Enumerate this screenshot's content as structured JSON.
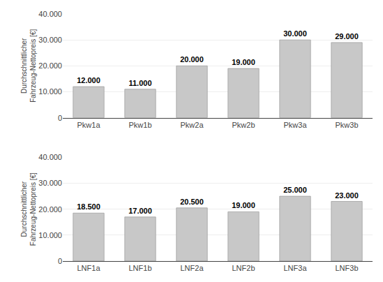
{
  "chart_data": [
    {
      "type": "bar",
      "categories": [
        "Pkw1a",
        "Pkw1b",
        "Pkw2a",
        "Pkw2b",
        "Pkw3a",
        "Pkw3b"
      ],
      "values": [
        12000,
        11000,
        20000,
        19000,
        30000,
        29000
      ],
      "value_labels": [
        "12.000",
        "11.000",
        "20.000",
        "19.000",
        "30.000",
        "29.000"
      ],
      "data_labels": true,
      "color": "#c8c8c8",
      "ylabel": "Durchschnittlicher\nFahrzeug-Nettopreis [€]",
      "ylim": [
        0,
        40000
      ],
      "yticks": [
        0,
        {
          "value": 10000,
          "label": "10.000"
        },
        {
          "value": 20000,
          "label": "20.000"
        },
        {
          "value": 30000,
          "label": "30.000"
        },
        {
          "value": 40000,
          "label": "40.000"
        }
      ],
      "grid": true
    },
    {
      "type": "bar",
      "categories": [
        "LNF1a",
        "LNF1b",
        "LNF2a",
        "LNF2b",
        "LNF3a",
        "LNF3b"
      ],
      "values": [
        18500,
        17000,
        20500,
        19000,
        25000,
        23000
      ],
      "value_labels": [
        "18.500",
        "17.000",
        "20.500",
        "19.000",
        "25.000",
        "23.000"
      ],
      "data_labels": true,
      "color": "#c8c8c8",
      "ylabel": "Durchschnittlicher\nFahrzeug-Nettopreis [€]",
      "ylim": [
        0,
        40000
      ],
      "yticks": [
        0,
        {
          "value": 10000,
          "label": "10.000"
        },
        {
          "value": 20000,
          "label": "20.000"
        },
        {
          "value": 30000,
          "label": "30.000"
        },
        {
          "value": 40000,
          "label": "40.000"
        }
      ],
      "grid": true
    }
  ]
}
